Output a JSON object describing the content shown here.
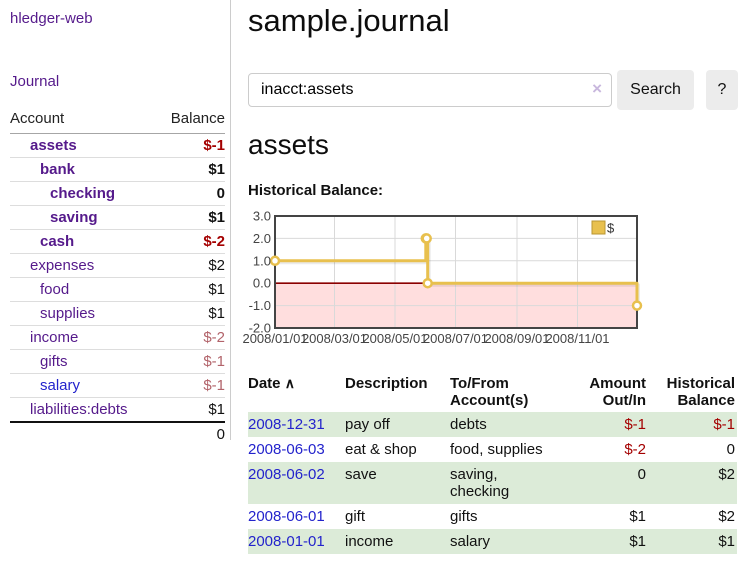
{
  "app": {
    "title": "hledger-web"
  },
  "sidebar": {
    "journal_label": "Journal",
    "table": {
      "col_account": "Account",
      "col_balance": "Balance",
      "rows": [
        {
          "name": "assets",
          "level": 1,
          "bold": true,
          "link_color": "purple",
          "balance": "$-1"
        },
        {
          "name": "bank",
          "level": 2,
          "bold": true,
          "link_color": "purple",
          "balance": "$1"
        },
        {
          "name": "checking",
          "level": 3,
          "bold": true,
          "link_color": "purple",
          "balance": "0"
        },
        {
          "name": "saving",
          "level": 3,
          "bold": true,
          "link_color": "purple",
          "balance": "$1"
        },
        {
          "name": "cash",
          "level": 2,
          "bold": true,
          "link_color": "purple",
          "balance": "$-2"
        },
        {
          "name": "expenses",
          "level": 1,
          "bold": false,
          "link_color": "purple",
          "balance": "$2"
        },
        {
          "name": "food",
          "level": 2,
          "bold": false,
          "link_color": "purple",
          "balance": "$1"
        },
        {
          "name": "supplies",
          "level": 2,
          "bold": false,
          "link_color": "purple",
          "balance": "$1"
        },
        {
          "name": "income",
          "level": 1,
          "bold": false,
          "link_color": "purple",
          "balance": "$-2"
        },
        {
          "name": "gifts",
          "level": 2,
          "bold": false,
          "link_color": "purple",
          "balance": "$-1"
        },
        {
          "name": "salary",
          "level": 2,
          "bold": false,
          "link_color": "blue",
          "balance": "$-1"
        },
        {
          "name": "liabilities:debts",
          "level": 1,
          "bold": false,
          "link_color": "purple",
          "balance": "$1"
        }
      ],
      "total": "0"
    }
  },
  "main": {
    "title": "sample.journal",
    "account_title": "assets",
    "chart_label": "Historical Balance:"
  },
  "search": {
    "value": "inacct:assets",
    "clear_icon": "×",
    "button_label": "Search",
    "help_label": "?"
  },
  "chart_data": {
    "type": "line",
    "step": true,
    "title": "Historical Balance:",
    "x_range": [
      "2008-01-01",
      "2008-12-31"
    ],
    "ylim": [
      -2,
      3
    ],
    "y_ticks": [
      {
        "label": "3.0",
        "value": 3
      },
      {
        "label": "2.0",
        "value": 2
      },
      {
        "label": "1.0",
        "value": 1
      },
      {
        "label": "0.0",
        "value": 0
      },
      {
        "label": "-1.0",
        "value": -1
      },
      {
        "label": "-2.0",
        "value": -2
      }
    ],
    "x_ticks": [
      {
        "label": "2008/01/01",
        "date": "2008-01-01"
      },
      {
        "label": "2008/03/01",
        "date": "2008-03-01"
      },
      {
        "label": "2008/05/01",
        "date": "2008-05-01"
      },
      {
        "label": "2008/07/01",
        "date": "2008-07-01"
      },
      {
        "label": "2008/09/01",
        "date": "2008-09-01"
      },
      {
        "label": "2008/11/01",
        "date": "2008-11-01"
      }
    ],
    "series": [
      {
        "name": "$",
        "points": [
          [
            "2008-01-01",
            1
          ],
          [
            "2008-06-01",
            2
          ],
          [
            "2008-06-02",
            2
          ],
          [
            "2008-06-03",
            0
          ],
          [
            "2008-12-31",
            -1
          ]
        ]
      }
    ],
    "legend_position": "top-right",
    "grid": true
  },
  "register": {
    "headers": {
      "date": "Date",
      "sort_indicator": "∧",
      "description": "Description",
      "accounts": "To/From Account(s)",
      "amount": "Amount Out/In",
      "balance": "Historical Balance"
    },
    "rows": [
      {
        "date": "2008-12-31",
        "description": "pay off",
        "accounts": "debts",
        "amount": "$-1",
        "balance": "$-1"
      },
      {
        "date": "2008-06-03",
        "description": "eat & shop",
        "accounts": "food, supplies",
        "amount": "$-2",
        "balance": "0"
      },
      {
        "date": "2008-06-02",
        "description": "save",
        "accounts": "saving, checking",
        "amount": "0",
        "balance": "$2"
      },
      {
        "date": "2008-06-01",
        "description": "gift",
        "accounts": "gifts",
        "amount": "$1",
        "balance": "$2"
      },
      {
        "date": "2008-01-01",
        "description": "income",
        "accounts": "salary",
        "amount": "$1",
        "balance": "$1"
      }
    ]
  },
  "colors": {
    "link_purple": "#551a8b",
    "link_blue": "#2323cc",
    "negative_strong": "#a40000",
    "negative_soft": "#b2636a",
    "table_stripe_green": "#dcebd8",
    "chart_line_gold": "#e8c04e",
    "chart_marker_fill": "#ffffff",
    "chart_negative_bg": "#ffdede",
    "chart_zero_line": "#8b0000",
    "chart_grid": "#d9d9d9",
    "chart_border": "#444444",
    "button_bg": "#ececec"
  }
}
